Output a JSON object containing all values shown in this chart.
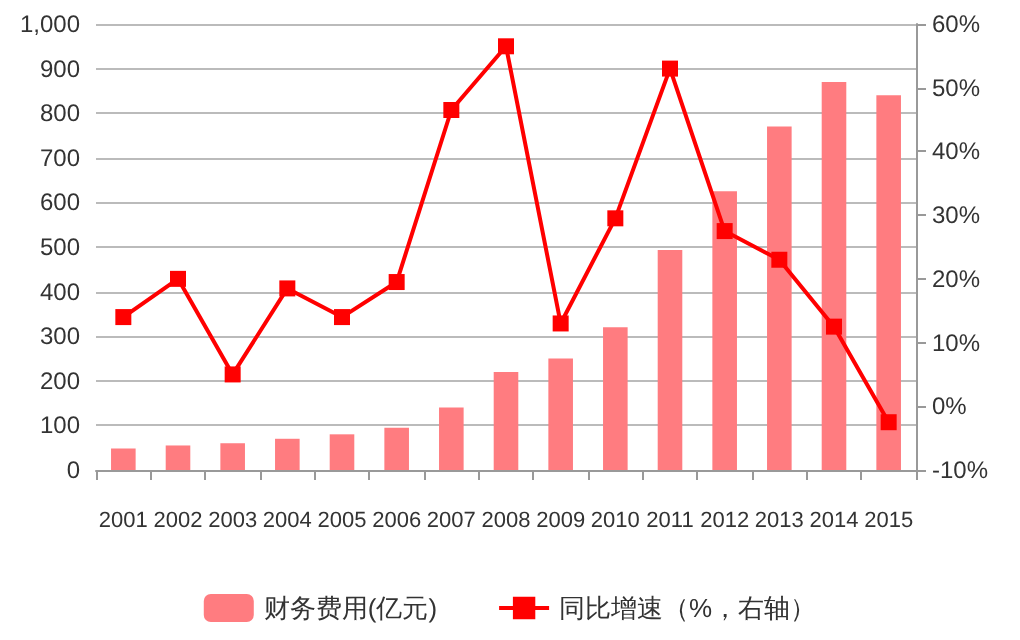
{
  "chart_data": {
    "type": "bar",
    "categories": [
      "2001",
      "2002",
      "2003",
      "2004",
      "2005",
      "2006",
      "2007",
      "2008",
      "2009",
      "2010",
      "2011",
      "2012",
      "2013",
      "2014",
      "2015"
    ],
    "series": [
      {
        "name": "财务费用(亿元)",
        "color": "#ff7c80",
        "values": [
          48,
          55,
          60,
          70,
          80,
          95,
          140,
          220,
          250,
          320,
          493,
          625,
          770,
          870,
          840
        ]
      },
      {
        "name": "同比增速（%，右轴）",
        "type": "line",
        "axis": "y2",
        "color": "#ff0000",
        "marker": "square",
        "values": [
          14,
          20,
          5,
          18.5,
          14,
          19.5,
          46.5,
          56.5,
          13,
          29.5,
          53,
          27.5,
          23,
          12.5,
          -2.5
        ]
      }
    ],
    "ylim": [
      0,
      1000
    ],
    "yticks": [
      0,
      100,
      200,
      300,
      400,
      500,
      600,
      700,
      800,
      900,
      {
        "value": 1000,
        "label": "1,000"
      }
    ],
    "y2lim": [
      -10,
      60
    ],
    "y2ticks": [
      {
        "value": -10,
        "label": "-10%"
      },
      {
        "value": 0,
        "label": "0%"
      },
      {
        "value": 10,
        "label": "10%"
      },
      {
        "value": 20,
        "label": "20%"
      },
      {
        "value": 30,
        "label": "30%"
      },
      {
        "value": 40,
        "label": "40%"
      },
      {
        "value": 50,
        "label": "50%"
      },
      {
        "value": 60,
        "label": "60%"
      }
    ],
    "grid": "y",
    "legend": "bottom"
  }
}
